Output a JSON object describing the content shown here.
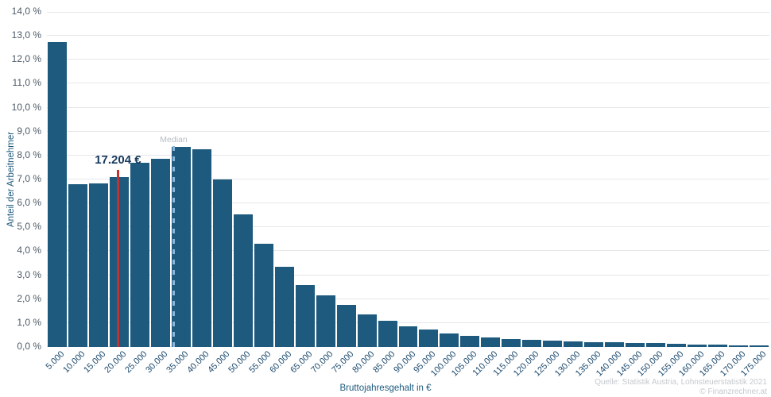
{
  "chart_data": {
    "type": "bar",
    "title": "",
    "xlabel": "Bruttojahresgehalt in €",
    "ylabel": "Anteil der Arbeitnehmer",
    "categories": [
      "5.000",
      "10.000",
      "15.000",
      "20.000",
      "25.000",
      "30.000",
      "35.000",
      "40.000",
      "45.000",
      "50.000",
      "55.000",
      "60.000",
      "65.000",
      "70.000",
      "75.000",
      "80.000",
      "85.000",
      "90.000",
      "95.000",
      "100.000",
      "105.000",
      "110.000",
      "115.000",
      "120.000",
      "125.000",
      "130.000",
      "135.000",
      "140.000",
      "145.000",
      "150.000",
      "155.000",
      "160.000",
      "165.000",
      "170.000",
      "175.000"
    ],
    "values": [
      12.75,
      6.8,
      6.85,
      7.1,
      7.7,
      7.85,
      8.35,
      8.25,
      7.0,
      5.55,
      4.3,
      3.35,
      2.6,
      2.15,
      1.75,
      1.35,
      1.1,
      0.85,
      0.72,
      0.58,
      0.47,
      0.39,
      0.34,
      0.3,
      0.26,
      0.23,
      0.21,
      0.19,
      0.17,
      0.15,
      0.13,
      0.11,
      0.09,
      0.08,
      0.07
    ],
    "ylim": [
      0,
      14
    ],
    "ytick_labels": [
      "0,0 %",
      "1,0 %",
      "2,0 %",
      "3,0 %",
      "4,0 %",
      "5,0 %",
      "6,0 %",
      "7,0 %",
      "8,0 %",
      "9,0 %",
      "10,0 %",
      "11,0 %",
      "12,0 %",
      "13,0 %",
      "14,0 %"
    ],
    "grid": true,
    "legend": false,
    "bin_width_eur": 5000,
    "bar_color": "#1d5a7d",
    "annotations": {
      "salary_marker": {
        "label": "17.204 €",
        "value_eur": 17204,
        "line_color": "#c23230",
        "label_color": "#163a5e"
      },
      "median": {
        "label": "Median",
        "position_eur": 30700,
        "line_color": "#8ab7dc",
        "label_color": "#b7bdc4"
      }
    }
  },
  "source": {
    "line1": "Quelle: Statistik Austria, Lohnsteuerstatistik 2021",
    "line2": "© Finanzrechner.at"
  },
  "colors": {
    "bar": "#1d5a7d",
    "gridline": "#e6e7e9",
    "ytick_text": "#4d5a68",
    "xtick_text": "#1c4a6e",
    "axis_title": "#1d5a7d",
    "source_text": "#c5c9cd"
  }
}
